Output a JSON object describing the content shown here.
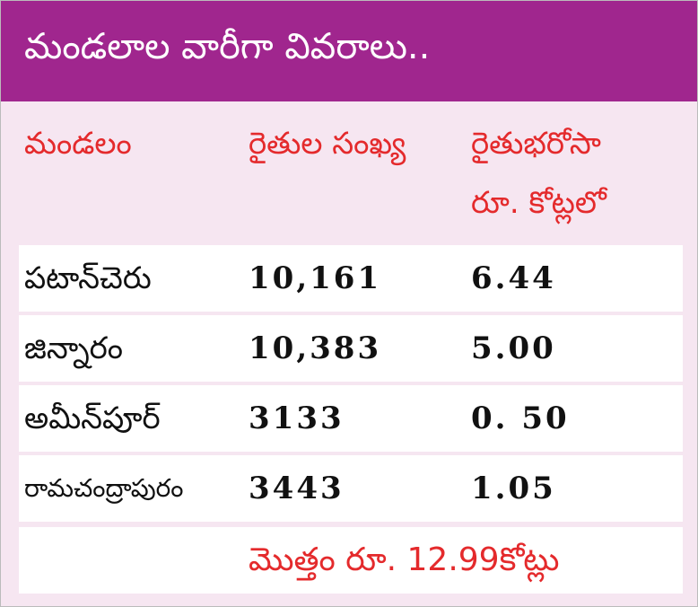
{
  "header": {
    "title": "మండలాల వారీగా వివరాలు.."
  },
  "table": {
    "columns": [
      [
        "మండలం"
      ],
      [
        "రైతుల సంఖ్య"
      ],
      [
        "రైతుభరోసా",
        "రూ. కోట్లలో"
      ]
    ],
    "rows": [
      [
        "పటాన్‌చెరు",
        "10,161",
        "6.44"
      ],
      [
        "జిన్నారం",
        "10,383",
        "5.00"
      ],
      [
        "అమీన్‌పూర్",
        "3133",
        "0. 50"
      ],
      [
        "రామచంద్రాపురం",
        "3443",
        "1.05"
      ]
    ],
    "total": "మొత్తం రూ. 12.99కోట్లు"
  }
}
